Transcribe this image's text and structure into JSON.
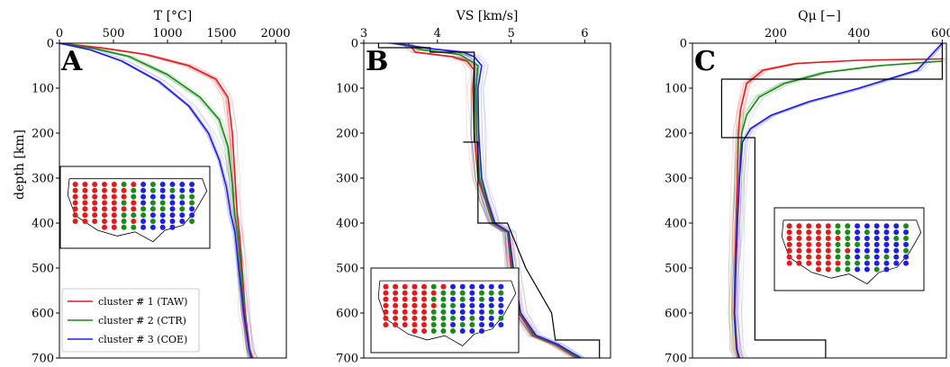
{
  "chart_data": [
    {
      "type": "line",
      "panel_letter": "A",
      "xlabel": "T [°C]",
      "ylabel": "depth [km]",
      "xlim": [
        0,
        2100
      ],
      "ylim": [
        0,
        700
      ],
      "xticks": [
        "0",
        "500",
        "1000",
        "1500",
        "2000"
      ],
      "yticks": [
        "0",
        "100",
        "200",
        "300",
        "400",
        "500",
        "600",
        "700"
      ],
      "y_inverted": true,
      "x_axis_position": "top",
      "legend_placement": "lower-left",
      "legend": [
        "cluster # 1 (TAW)",
        "cluster # 2 (CTR)",
        "cluster # 3 (COE)"
      ],
      "series": [
        {
          "name": "cluster # 1 (TAW)",
          "color": "#e31a1c",
          "x": [
            0,
            380,
            800,
            1200,
            1450,
            1560,
            1600,
            1625,
            1645,
            1665,
            1690,
            1720,
            1760,
            1790
          ],
          "y": [
            0,
            10,
            25,
            50,
            80,
            120,
            200,
            300,
            380,
            420,
            500,
            600,
            680,
            700
          ]
        },
        {
          "name": "cluster # 2 (CTR)",
          "color": "#1a8a1a",
          "x": [
            0,
            330,
            650,
            1000,
            1300,
            1480,
            1560,
            1595,
            1620,
            1650,
            1680,
            1710,
            1755,
            1780
          ],
          "y": [
            0,
            12,
            30,
            70,
            120,
            170,
            230,
            300,
            380,
            420,
            500,
            600,
            680,
            700
          ]
        },
        {
          "name": "cluster # 3 (COE)",
          "color": "#1f1fe0",
          "x": [
            0,
            290,
            580,
            920,
            1200,
            1380,
            1480,
            1545,
            1585,
            1625,
            1660,
            1705,
            1755,
            1775
          ],
          "y": [
            0,
            15,
            40,
            85,
            140,
            200,
            260,
            320,
            380,
            420,
            500,
            600,
            680,
            700
          ]
        }
      ],
      "inset": "US map of station clusters"
    },
    {
      "type": "line",
      "panel_letter": "B",
      "xlabel": "VS [km/s]",
      "xlim": [
        3.0,
        6.35
      ],
      "ylim": [
        0,
        700
      ],
      "xticks": [
        "3",
        "4",
        "5",
        "6"
      ],
      "yticks": [
        "0",
        "100",
        "200",
        "300",
        "400",
        "500",
        "600",
        "700"
      ],
      "y_inverted": true,
      "x_axis_position": "top",
      "series": [
        {
          "name": "cluster # 1 (TAW)",
          "color": "#e31a1c",
          "x": [
            3.6,
            3.7,
            4.2,
            4.4,
            4.5,
            4.48,
            4.5,
            4.55,
            4.65,
            4.75,
            4.95,
            5.0,
            5.1,
            5.3,
            5.6,
            5.9
          ],
          "y": [
            0,
            20,
            30,
            40,
            60,
            100,
            200,
            300,
            350,
            400,
            420,
            500,
            600,
            650,
            670,
            700
          ]
        },
        {
          "name": "cluster # 2 (CTR)",
          "color": "#1a8a1a",
          "x": [
            3.5,
            3.8,
            4.3,
            4.4,
            4.55,
            4.52,
            4.53,
            4.57,
            4.66,
            4.76,
            4.96,
            5.02,
            5.12,
            5.32,
            5.62,
            5.92
          ],
          "y": [
            0,
            15,
            25,
            35,
            50,
            100,
            200,
            300,
            350,
            400,
            420,
            500,
            600,
            650,
            670,
            700
          ]
        },
        {
          "name": "cluster # 3 (COE)",
          "color": "#1f1fe0",
          "x": [
            3.4,
            3.9,
            4.35,
            4.5,
            4.6,
            4.55,
            4.56,
            4.6,
            4.68,
            4.78,
            4.97,
            5.03,
            5.13,
            5.34,
            5.64,
            5.95
          ],
          "y": [
            0,
            12,
            20,
            30,
            50,
            100,
            200,
            300,
            350,
            400,
            420,
            500,
            600,
            650,
            670,
            700
          ]
        },
        {
          "name": "",
          "color": "#000000",
          "x": [
            3.2,
            3.2,
            3.9,
            3.9,
            4.5,
            4.5,
            4.35,
            4.35,
            4.55,
            4.55,
            4.75,
            4.75,
            4.95,
            5.2,
            5.55,
            5.6,
            6.2,
            6.2
          ],
          "y": [
            0,
            10,
            10,
            20,
            20,
            220,
            220,
            220,
            220,
            400,
            400,
            400,
            400,
            500,
            600,
            660,
            660,
            700
          ]
        }
      ],
      "inset": "US map of station clusters"
    },
    {
      "type": "line",
      "panel_letter": "C",
      "xlabel": "Qμ [−]",
      "xlim": [
        0,
        610
      ],
      "ylim": [
        0,
        700
      ],
      "xticks": [
        "200",
        "400",
        "600"
      ],
      "yticks": [
        "0",
        "100",
        "200",
        "300",
        "400",
        "500",
        "600",
        "700"
      ],
      "y_inverted": true,
      "x_axis_position": "top",
      "series": [
        {
          "name": "cluster # 1 (TAW)",
          "color": "#e31a1c",
          "x": [
            600,
            400,
            250,
            170,
            130,
            115,
            110,
            108,
            105,
            102,
            100,
            105,
            110
          ],
          "y": [
            35,
            38,
            45,
            60,
            90,
            150,
            200,
            300,
            400,
            500,
            600,
            680,
            700
          ]
        },
        {
          "name": "cluster # 2 (CTR)",
          "color": "#1a8a1a",
          "x": [
            600,
            450,
            320,
            220,
            160,
            130,
            118,
            112,
            108,
            104,
            101,
            106,
            112
          ],
          "y": [
            40,
            50,
            65,
            90,
            120,
            160,
            200,
            300,
            400,
            500,
            600,
            680,
            700
          ]
        },
        {
          "name": "cluster # 3 (COE)",
          "color": "#1f1fe0",
          "x": [
            600,
            540,
            400,
            280,
            190,
            140,
            120,
            113,
            108,
            104,
            101,
            107,
            113
          ],
          "y": [
            0,
            60,
            100,
            130,
            160,
            190,
            220,
            300,
            400,
            500,
            600,
            680,
            700
          ]
        },
        {
          "name": "",
          "color": "#000000",
          "x": [
            600,
            600,
            70,
            70,
            150,
            150,
            320,
            320
          ],
          "y": [
            0,
            80,
            80,
            210,
            210,
            660,
            660,
            700
          ]
        }
      ],
      "inset": "US map of station clusters"
    }
  ]
}
